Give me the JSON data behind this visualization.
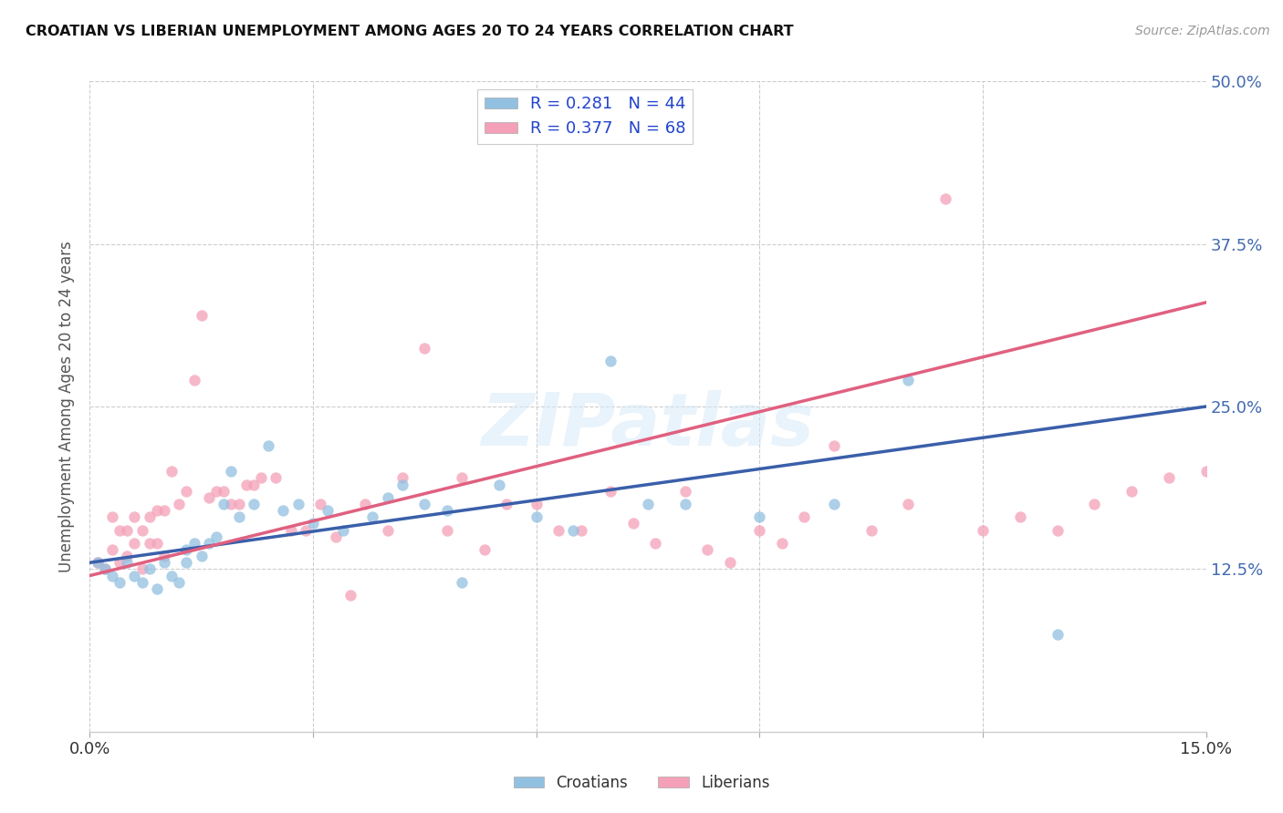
{
  "title": "CROATIAN VS LIBERIAN UNEMPLOYMENT AMONG AGES 20 TO 24 YEARS CORRELATION CHART",
  "source": "Source: ZipAtlas.com",
  "ylabel": "Unemployment Among Ages 20 to 24 years",
  "watermark": "ZIPatlas",
  "xlim": [
    0.0,
    0.15
  ],
  "ylim": [
    0.0,
    0.5
  ],
  "croatians_color": "#92c0e0",
  "liberians_color": "#f4a0b8",
  "trend_croatians_color": "#3a5faa",
  "trend_liberians_color": "#e06080",
  "croatians_R": 0.281,
  "croatians_N": 44,
  "liberians_R": 0.377,
  "liberians_N": 68,
  "croatians_x": [
    0.001,
    0.002,
    0.003,
    0.004,
    0.005,
    0.006,
    0.007,
    0.008,
    0.009,
    0.01,
    0.011,
    0.012,
    0.013,
    0.013,
    0.014,
    0.015,
    0.016,
    0.017,
    0.018,
    0.019,
    0.02,
    0.022,
    0.024,
    0.026,
    0.028,
    0.03,
    0.032,
    0.034,
    0.038,
    0.04,
    0.042,
    0.045,
    0.048,
    0.05,
    0.055,
    0.06,
    0.065,
    0.07,
    0.075,
    0.08,
    0.09,
    0.1,
    0.11,
    0.13
  ],
  "croatians_y": [
    0.13,
    0.125,
    0.12,
    0.115,
    0.13,
    0.12,
    0.115,
    0.125,
    0.11,
    0.13,
    0.12,
    0.115,
    0.14,
    0.13,
    0.145,
    0.135,
    0.145,
    0.15,
    0.175,
    0.2,
    0.165,
    0.175,
    0.22,
    0.17,
    0.175,
    0.16,
    0.17,
    0.155,
    0.165,
    0.18,
    0.19,
    0.175,
    0.17,
    0.115,
    0.19,
    0.165,
    0.155,
    0.285,
    0.175,
    0.175,
    0.165,
    0.175,
    0.27,
    0.075
  ],
  "liberians_x": [
    0.001,
    0.002,
    0.003,
    0.003,
    0.004,
    0.004,
    0.005,
    0.005,
    0.006,
    0.006,
    0.007,
    0.007,
    0.008,
    0.008,
    0.009,
    0.009,
    0.01,
    0.01,
    0.011,
    0.012,
    0.013,
    0.014,
    0.015,
    0.016,
    0.017,
    0.018,
    0.019,
    0.02,
    0.021,
    0.022,
    0.023,
    0.025,
    0.027,
    0.029,
    0.031,
    0.033,
    0.035,
    0.037,
    0.04,
    0.042,
    0.045,
    0.048,
    0.05,
    0.053,
    0.056,
    0.06,
    0.063,
    0.066,
    0.07,
    0.073,
    0.076,
    0.08,
    0.083,
    0.086,
    0.09,
    0.093,
    0.096,
    0.1,
    0.105,
    0.11,
    0.115,
    0.12,
    0.125,
    0.13,
    0.135,
    0.14,
    0.145,
    0.15
  ],
  "liberians_y": [
    0.13,
    0.125,
    0.14,
    0.165,
    0.13,
    0.155,
    0.135,
    0.155,
    0.145,
    0.165,
    0.125,
    0.155,
    0.145,
    0.165,
    0.145,
    0.17,
    0.135,
    0.17,
    0.2,
    0.175,
    0.185,
    0.27,
    0.32,
    0.18,
    0.185,
    0.185,
    0.175,
    0.175,
    0.19,
    0.19,
    0.195,
    0.195,
    0.155,
    0.155,
    0.175,
    0.15,
    0.105,
    0.175,
    0.155,
    0.195,
    0.295,
    0.155,
    0.195,
    0.14,
    0.175,
    0.175,
    0.155,
    0.155,
    0.185,
    0.16,
    0.145,
    0.185,
    0.14,
    0.13,
    0.155,
    0.145,
    0.165,
    0.22,
    0.155,
    0.175,
    0.41,
    0.155,
    0.165,
    0.155,
    0.175,
    0.185,
    0.195,
    0.2
  ]
}
